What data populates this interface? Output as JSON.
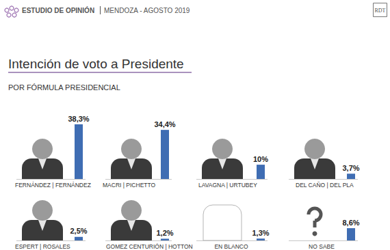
{
  "header": {
    "study": "ESTUDIO DE OPINIÓN",
    "place_date": "MENDOZA - AGOSTO 2019",
    "logo": "RDT"
  },
  "chart_data": {
    "type": "bar",
    "title": "Intención de voto a Presidente",
    "subtitle": "POR FÓRMULA PRESIDENCIAL",
    "categories": [
      "FERNÁNDEZ | FERNÁNDEZ",
      "MACRI | PICHETTO",
      "LAVAGNA | URTUBEY",
      "DEL CAÑO | DEL PLA",
      "ESPERT | ROSALES",
      "GOMEZ CENTURIÓN | HOTTON",
      "EN BLANCO",
      "NO SABE"
    ],
    "values": [
      38.3,
      34.4,
      10,
      3.7,
      2.5,
      1.2,
      1.3,
      8.6
    ],
    "value_labels": [
      "38,3%",
      "34,4%",
      "10%",
      "3,7%",
      "2,5%",
      "1,2%",
      "1,3%",
      "8,6%"
    ],
    "color": "#3f6db3",
    "ylim": [
      0,
      38.3
    ],
    "data_labels": true,
    "tick_labels": false,
    "grid": false
  }
}
